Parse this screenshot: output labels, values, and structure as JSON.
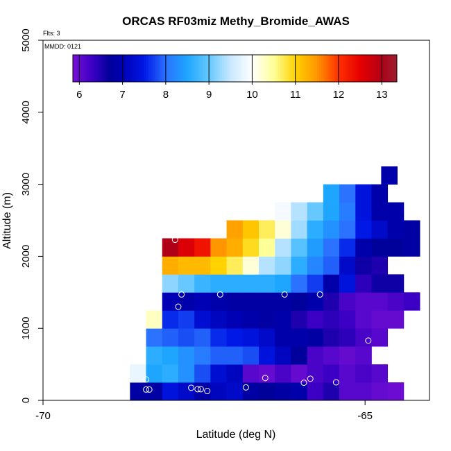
{
  "chart_data": {
    "type": "heatmap",
    "title": "ORCAS RF03miz Methy_Bromide_AWAS",
    "xlabel": "Latitude (deg N)",
    "ylabel": "Altitude (m)",
    "xlim": [
      -70,
      -64
    ],
    "ylim": [
      0,
      5000
    ],
    "xticks": [
      -70,
      -65
    ],
    "xtick_labels": [
      "-70",
      "-65"
    ],
    "yticks": [
      0,
      1000,
      2000,
      3000,
      4000,
      5000
    ],
    "ytick_labels": [
      "0",
      "1000",
      "2000",
      "3000",
      "4000",
      "5000"
    ],
    "flights_label": "Flts: 3",
    "date_label": "MMDD: 0121",
    "colorbar": {
      "min": 5.85,
      "max": 13.35,
      "ticks": [
        6,
        7,
        8,
        9,
        10,
        11,
        12,
        13
      ],
      "tick_labels": [
        "6",
        "7",
        "8",
        "9",
        "10",
        "11",
        "12",
        "13"
      ],
      "stops": [
        [
          5.85,
          "#7a10d6"
        ],
        [
          6.3,
          "#3c00c4"
        ],
        [
          6.7,
          "#00009a"
        ],
        [
          7.0,
          "#0000b4"
        ],
        [
          7.5,
          "#0018e6"
        ],
        [
          8.0,
          "#2a72ff"
        ],
        [
          8.5,
          "#1ea6ff"
        ],
        [
          9.0,
          "#66c8ff"
        ],
        [
          9.5,
          "#c9e8ff"
        ],
        [
          10.0,
          "#ffffff"
        ],
        [
          10.5,
          "#ffff9a"
        ],
        [
          11.0,
          "#ffd200"
        ],
        [
          11.5,
          "#ff9600"
        ],
        [
          12.0,
          "#ff3000"
        ],
        [
          12.5,
          "#e60000"
        ],
        [
          13.0,
          "#b00018"
        ],
        [
          13.35,
          "#9a2030"
        ]
      ]
    },
    "cell_width_deg": 0.25,
    "cell_height_m": 250,
    "rows": [
      {
        "alt": 125,
        "lat_start": -68.65,
        "values": [
          6.8,
          6.8,
          7.4,
          7.2,
          6.9,
          7.1,
          7.2,
          6.8,
          6.7,
          6.8,
          6.9,
          6.3,
          6.5,
          6.1,
          6.1,
          6.0,
          5.95
        ]
      },
      {
        "alt": 375,
        "lat_start": -68.65,
        "values": [
          9.8,
          8.5,
          8.6,
          8.3,
          7.8,
          7.3,
          7.1,
          6.1,
          6.0,
          6.2,
          6.0,
          6.2,
          6.3,
          6.1,
          6.2,
          6.1
        ]
      },
      {
        "alt": 625,
        "lat_start": -68.4,
        "values": [
          8.6,
          8.5,
          8.3,
          8.1,
          7.9,
          7.9,
          7.8,
          7.4,
          7.1,
          6.7,
          6.2,
          6.1,
          6.0,
          6.1
        ]
      },
      {
        "alt": 875,
        "lat_start": -68.4,
        "values": [
          8.0,
          7.9,
          7.8,
          7.9,
          7.6,
          7.5,
          7.4,
          7.2,
          6.9,
          6.9,
          6.8,
          6.5,
          6.4,
          6.2,
          6.1
        ]
      },
      {
        "alt": 1125,
        "lat_start": -68.4,
        "values": [
          10.3,
          7.6,
          7.7,
          7.3,
          7.1,
          7.0,
          6.9,
          6.8,
          6.9,
          6.5,
          6.3,
          6.4,
          6.3,
          6.1,
          6.0,
          6.0
        ]
      },
      {
        "alt": 1375,
        "lat_start": -68.15,
        "values": [
          7.0,
          6.9,
          7.0,
          6.9,
          6.8,
          6.8,
          6.8,
          6.8,
          6.7,
          6.9,
          6.5,
          6.2,
          6.1,
          6.1,
          6.2,
          6.3
        ]
      },
      {
        "alt": 1625,
        "lat_start": -68.15,
        "values": [
          9.2,
          9.0,
          8.7,
          8.6,
          8.6,
          8.6,
          8.6,
          8.5,
          8.0,
          7.7,
          6.9,
          7.4,
          6.4,
          6.6,
          6.6
        ]
      },
      {
        "alt": 1875,
        "lat_start": -68.15,
        "values": [
          11.3,
          11.2,
          11.2,
          11.0,
          10.7,
          10.2,
          9.4,
          9.2,
          8.6,
          8.2,
          7.9,
          7.2,
          6.6,
          6.5
        ]
      },
      {
        "alt": 2125,
        "lat_start": -68.15,
        "values": [
          13.0,
          12.6,
          12.3,
          11.5,
          11.3,
          10.9,
          10.5,
          9.4,
          8.9,
          8.4,
          8.0,
          7.6,
          6.9,
          6.7,
          6.7,
          6.8
        ]
      },
      {
        "alt": 2375,
        "lat_start": -67.15,
        "values": [
          11.4,
          11.1,
          10.7,
          10.2,
          9.3,
          8.6,
          8.3,
          8.0,
          7.5,
          7.2,
          6.9,
          6.8
        ]
      },
      {
        "alt": 2625,
        "lat_start": -66.4,
        "values": [
          9.9,
          9.4,
          9.0,
          8.5,
          8.1,
          7.4,
          6.9,
          6.9
        ]
      },
      {
        "alt": 2875,
        "lat_start": -65.65,
        "values": [
          8.5,
          8.0,
          7.4,
          6.9
        ]
      },
      {
        "alt": 3125,
        "lat_start": -64.75,
        "values": [
          6.9
        ]
      }
    ],
    "samples": [
      {
        "lat": -68.4,
        "alt": 150
      },
      {
        "lat": -68.35,
        "alt": 150
      },
      {
        "lat": -68.4,
        "alt": 290
      },
      {
        "lat": -67.7,
        "alt": 175
      },
      {
        "lat": -67.6,
        "alt": 155
      },
      {
        "lat": -67.55,
        "alt": 155
      },
      {
        "lat": -67.45,
        "alt": 130
      },
      {
        "lat": -66.85,
        "alt": 180
      },
      {
        "lat": -66.55,
        "alt": 310
      },
      {
        "lat": -65.95,
        "alt": 245
      },
      {
        "lat": -65.85,
        "alt": 300
      },
      {
        "lat": -65.45,
        "alt": 250
      },
      {
        "lat": -64.95,
        "alt": 830
      },
      {
        "lat": -67.9,
        "alt": 1300
      },
      {
        "lat": -67.85,
        "alt": 1470
      },
      {
        "lat": -67.25,
        "alt": 1470
      },
      {
        "lat": -66.25,
        "alt": 1470
      },
      {
        "lat": -65.7,
        "alt": 1470
      },
      {
        "lat": -67.95,
        "alt": 2230
      },
      {
        "lat": -64.8,
        "alt": 3230
      }
    ]
  }
}
